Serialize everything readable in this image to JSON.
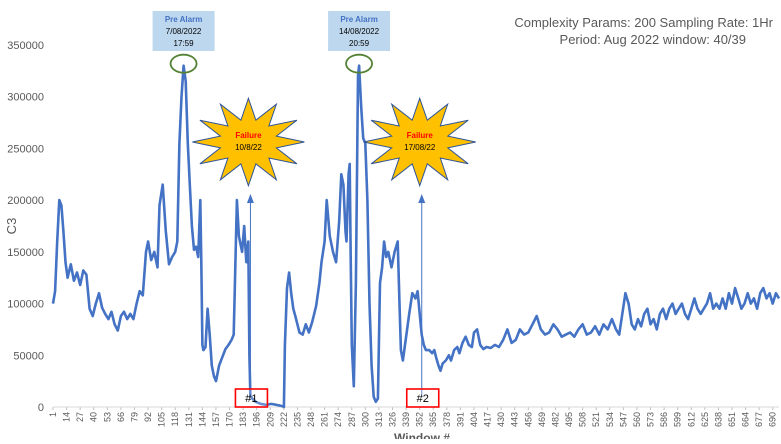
{
  "chart_data": {
    "type": "line",
    "title": "",
    "xlabel": "Window #",
    "ylabel": "C3",
    "ylim": [
      0,
      350000
    ],
    "xlim": [
      1,
      696
    ],
    "grid": false,
    "legend": "none",
    "yticks": [
      0,
      50000,
      100000,
      150000,
      200000,
      250000,
      300000,
      350000
    ],
    "ytick_labels": [
      "0",
      "50000",
      "100000",
      "150000",
      "200000",
      "250000",
      "300000",
      "350000"
    ],
    "xtick_labels": [
      "1",
      "14",
      "27",
      "40",
      "53",
      "66",
      "79",
      "92",
      "105",
      "118",
      "131",
      "144",
      "157",
      "170",
      "183",
      "196",
      "209",
      "222",
      "235",
      "248",
      "261",
      "274",
      "287",
      "300",
      "313",
      "326",
      "339",
      "352",
      "365",
      "378",
      "391",
      "404",
      "417",
      "430",
      "443",
      "456",
      "469",
      "482",
      "495",
      "508",
      "521",
      "534",
      "547",
      "560",
      "573",
      "586",
      "599",
      "612",
      "625",
      "638",
      "651",
      "664",
      "677",
      "690"
    ],
    "params": {
      "line1": "Complexity Params: 200  Sampling Rate: 1Hr",
      "line2": "Period: Aug 2022  window: 40/39"
    },
    "series": [
      {
        "color": "#4472C4",
        "points": [
          [
            1,
            100000
          ],
          [
            3,
            112000
          ],
          [
            5,
            160000
          ],
          [
            7,
            200000
          ],
          [
            9,
            195000
          ],
          [
            11,
            170000
          ],
          [
            13,
            140000
          ],
          [
            15,
            125000
          ],
          [
            18,
            138000
          ],
          [
            21,
            122000
          ],
          [
            24,
            130000
          ],
          [
            27,
            118000
          ],
          [
            30,
            132000
          ],
          [
            33,
            128000
          ],
          [
            36,
            95000
          ],
          [
            39,
            88000
          ],
          [
            42,
            100000
          ],
          [
            45,
            110000
          ],
          [
            48,
            96000
          ],
          [
            51,
            90000
          ],
          [
            54,
            85000
          ],
          [
            57,
            92000
          ],
          [
            60,
            80000
          ],
          [
            63,
            74000
          ],
          [
            66,
            88000
          ],
          [
            69,
            92000
          ],
          [
            72,
            85000
          ],
          [
            75,
            90000
          ],
          [
            78,
            85000
          ],
          [
            81,
            100000
          ],
          [
            84,
            112000
          ],
          [
            87,
            108000
          ],
          [
            90,
            150000
          ],
          [
            92,
            160000
          ],
          [
            95,
            142000
          ],
          [
            98,
            150000
          ],
          [
            101,
            135000
          ],
          [
            103,
            195000
          ],
          [
            106,
            215000
          ],
          [
            109,
            170000
          ],
          [
            112,
            138000
          ],
          [
            115,
            145000
          ],
          [
            118,
            150000
          ],
          [
            120,
            160000
          ],
          [
            122,
            255000
          ],
          [
            124,
            300000
          ],
          [
            126,
            330000
          ],
          [
            128,
            315000
          ],
          [
            130,
            255000
          ],
          [
            132,
            215000
          ],
          [
            134,
            175000
          ],
          [
            136,
            152000
          ],
          [
            138,
            155000
          ],
          [
            140,
            145000
          ],
          [
            142,
            200000
          ],
          [
            143,
            140000
          ],
          [
            144,
            60000
          ],
          [
            145,
            55000
          ],
          [
            147,
            58000
          ],
          [
            149,
            95000
          ],
          [
            151,
            70000
          ],
          [
            153,
            40000
          ],
          [
            155,
            30000
          ],
          [
            157,
            25000
          ],
          [
            160,
            40000
          ],
          [
            163,
            48000
          ],
          [
            166,
            56000
          ],
          [
            169,
            60000
          ],
          [
            172,
            65000
          ],
          [
            174,
            70000
          ],
          [
            177,
            200000
          ],
          [
            179,
            165000
          ],
          [
            182,
            150000
          ],
          [
            184,
            175000
          ],
          [
            186,
            140000
          ],
          [
            188,
            160000
          ],
          [
            189,
            50000
          ],
          [
            190,
            10000
          ],
          [
            192,
            8000
          ],
          [
            195,
            5000
          ],
          [
            200,
            3000
          ],
          [
            205,
            2000
          ],
          [
            210,
            3000
          ],
          [
            215,
            2000
          ],
          [
            220,
            1000
          ],
          [
            222,
            0
          ],
          [
            223,
            60000
          ],
          [
            225,
            115000
          ],
          [
            227,
            130000
          ],
          [
            229,
            110000
          ],
          [
            231,
            95000
          ],
          [
            233,
            88000
          ],
          [
            235,
            80000
          ],
          [
            237,
            72000
          ],
          [
            240,
            70000
          ],
          [
            243,
            80000
          ],
          [
            246,
            72000
          ],
          [
            249,
            82000
          ],
          [
            251,
            90000
          ],
          [
            253,
            98000
          ],
          [
            256,
            120000
          ],
          [
            258,
            140000
          ],
          [
            261,
            160000
          ],
          [
            263,
            200000
          ],
          [
            266,
            165000
          ],
          [
            269,
            150000
          ],
          [
            272,
            140000
          ],
          [
            275,
            180000
          ],
          [
            277,
            225000
          ],
          [
            279,
            215000
          ],
          [
            281,
            170000
          ],
          [
            282,
            160000
          ],
          [
            284,
            225000
          ],
          [
            285,
            235000
          ],
          [
            286,
            145000
          ],
          [
            287,
            60000
          ],
          [
            289,
            20000
          ],
          [
            291,
            120000
          ],
          [
            293,
            320000
          ],
          [
            294,
            330000
          ],
          [
            296,
            290000
          ],
          [
            298,
            260000
          ],
          [
            300,
            255000
          ],
          [
            302,
            200000
          ],
          [
            304,
            100000
          ],
          [
            306,
            40000
          ],
          [
            308,
            10000
          ],
          [
            310,
            5000
          ],
          [
            312,
            8000
          ],
          [
            314,
            120000
          ],
          [
            316,
            135000
          ],
          [
            318,
            160000
          ],
          [
            320,
            145000
          ],
          [
            322,
            150000
          ],
          [
            325,
            135000
          ],
          [
            328,
            150000
          ],
          [
            331,
            160000
          ],
          [
            333,
            90000
          ],
          [
            334,
            55000
          ],
          [
            336,
            45000
          ],
          [
            338,
            60000
          ],
          [
            340,
            75000
          ],
          [
            342,
            90000
          ],
          [
            345,
            110000
          ],
          [
            348,
            105000
          ],
          [
            350,
            112000
          ],
          [
            352,
            90000
          ],
          [
            354,
            70000
          ],
          [
            356,
            60000
          ],
          [
            358,
            55000
          ],
          [
            361,
            55000
          ],
          [
            364,
            52000
          ],
          [
            366,
            55000
          ],
          [
            368,
            47000
          ],
          [
            370,
            40000
          ],
          [
            372,
            35000
          ],
          [
            374,
            42000
          ],
          [
            377,
            45000
          ],
          [
            380,
            50000
          ],
          [
            382,
            45000
          ],
          [
            385,
            55000
          ],
          [
            388,
            58000
          ],
          [
            390,
            52000
          ],
          [
            393,
            62000
          ],
          [
            396,
            68000
          ],
          [
            399,
            60000
          ],
          [
            402,
            58000
          ],
          [
            404,
            72000
          ],
          [
            407,
            75000
          ],
          [
            410,
            60000
          ],
          [
            413,
            56000
          ],
          [
            416,
            58000
          ],
          [
            420,
            57000
          ],
          [
            424,
            60000
          ],
          [
            428,
            58000
          ],
          [
            432,
            65000
          ],
          [
            436,
            75000
          ],
          [
            440,
            62000
          ],
          [
            444,
            65000
          ],
          [
            448,
            75000
          ],
          [
            452,
            70000
          ],
          [
            456,
            72000
          ],
          [
            460,
            80000
          ],
          [
            464,
            88000
          ],
          [
            468,
            75000
          ],
          [
            472,
            70000
          ],
          [
            476,
            72000
          ],
          [
            480,
            80000
          ],
          [
            484,
            75000
          ],
          [
            488,
            68000
          ],
          [
            492,
            70000
          ],
          [
            496,
            72000
          ],
          [
            500,
            68000
          ],
          [
            504,
            75000
          ],
          [
            508,
            80000
          ],
          [
            512,
            70000
          ],
          [
            516,
            72000
          ],
          [
            520,
            78000
          ],
          [
            524,
            70000
          ],
          [
            528,
            80000
          ],
          [
            532,
            75000
          ],
          [
            536,
            85000
          ],
          [
            540,
            75000
          ],
          [
            543,
            70000
          ],
          [
            546,
            90000
          ],
          [
            549,
            110000
          ],
          [
            552,
            100000
          ],
          [
            555,
            80000
          ],
          [
            558,
            75000
          ],
          [
            561,
            85000
          ],
          [
            564,
            78000
          ],
          [
            567,
            90000
          ],
          [
            570,
            95000
          ],
          [
            573,
            80000
          ],
          [
            576,
            85000
          ],
          [
            579,
            75000
          ],
          [
            582,
            90000
          ],
          [
            585,
            95000
          ],
          [
            588,
            85000
          ],
          [
            591,
            95000
          ],
          [
            594,
            100000
          ],
          [
            597,
            90000
          ],
          [
            600,
            95000
          ],
          [
            603,
            100000
          ],
          [
            606,
            90000
          ],
          [
            609,
            85000
          ],
          [
            612,
            95000
          ],
          [
            615,
            105000
          ],
          [
            618,
            95000
          ],
          [
            621,
            90000
          ],
          [
            624,
            95000
          ],
          [
            627,
            100000
          ],
          [
            630,
            110000
          ],
          [
            633,
            95000
          ],
          [
            636,
            100000
          ],
          [
            639,
            95000
          ],
          [
            642,
            105000
          ],
          [
            645,
            95000
          ],
          [
            648,
            110000
          ],
          [
            651,
            100000
          ],
          [
            654,
            115000
          ],
          [
            657,
            105000
          ],
          [
            660,
            95000
          ],
          [
            663,
            100000
          ],
          [
            666,
            110000
          ],
          [
            669,
            100000
          ],
          [
            672,
            105000
          ],
          [
            675,
            95000
          ],
          [
            678,
            110000
          ],
          [
            681,
            115000
          ],
          [
            684,
            105000
          ],
          [
            687,
            110000
          ],
          [
            690,
            100000
          ],
          [
            693,
            110000
          ],
          [
            696,
            105000
          ]
        ]
      }
    ],
    "annotations": [
      {
        "kind": "pre_alarm",
        "x": 126,
        "y": 330000,
        "label_line1": "Pre Alarm",
        "label_line2": "7/08/2022",
        "label_line3": "17:59"
      },
      {
        "kind": "pre_alarm",
        "x": 294,
        "y": 330000,
        "label_line1": "Pre Alarm",
        "label_line2": "14/08/2022",
        "label_line3": "20:59"
      },
      {
        "kind": "failure",
        "x": 190,
        "label_line1": "Failure",
        "label_line2": "10/8/22",
        "marker": "#1"
      },
      {
        "kind": "failure",
        "x": 354,
        "label_line1": "Failure",
        "label_line2": "17/08/22",
        "marker": "#2"
      }
    ],
    "colors": {
      "line": "#4472C4",
      "prealarm_box": "#BDD7EE",
      "prealarm_text": "#4472C4",
      "ellipse": "#548235",
      "star_fill": "#FFC000",
      "star_stroke": "#2F5597",
      "failure_text": "#FF0000",
      "marker_box": "#FF0000",
      "axis_text": "#595959",
      "arrow": "#4472C4"
    }
  }
}
